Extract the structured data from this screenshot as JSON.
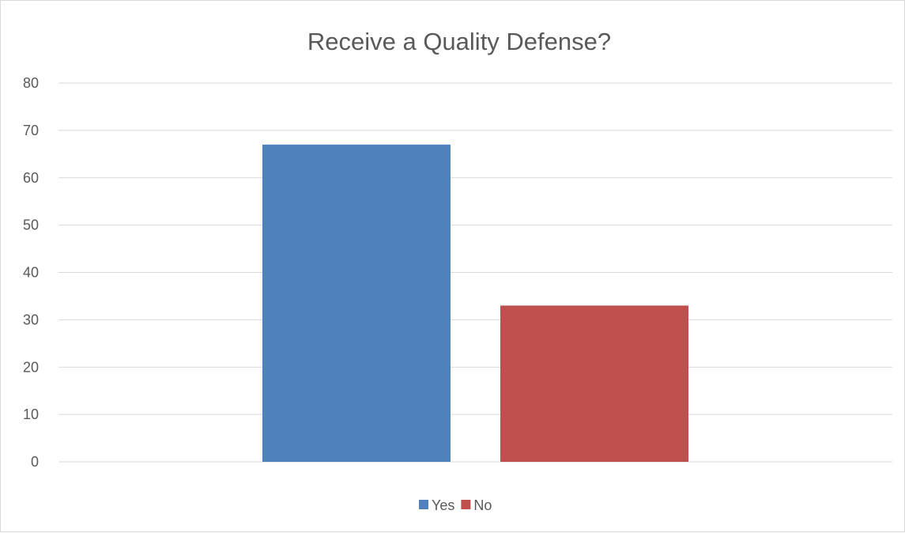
{
  "chart_data": {
    "type": "bar",
    "title": "Receive a Quality Defense?",
    "xlabel": "",
    "ylabel": "",
    "ylim": [
      0,
      80
    ],
    "yticks": [
      0,
      10,
      20,
      30,
      40,
      50,
      60,
      70,
      80
    ],
    "grid": true,
    "legend_position": "bottom",
    "categories": [
      ""
    ],
    "series": [
      {
        "name": "Yes",
        "values": [
          67
        ],
        "color": "#4f81bd"
      },
      {
        "name": "No",
        "values": [
          33
        ],
        "color": "#c0504d"
      }
    ]
  }
}
